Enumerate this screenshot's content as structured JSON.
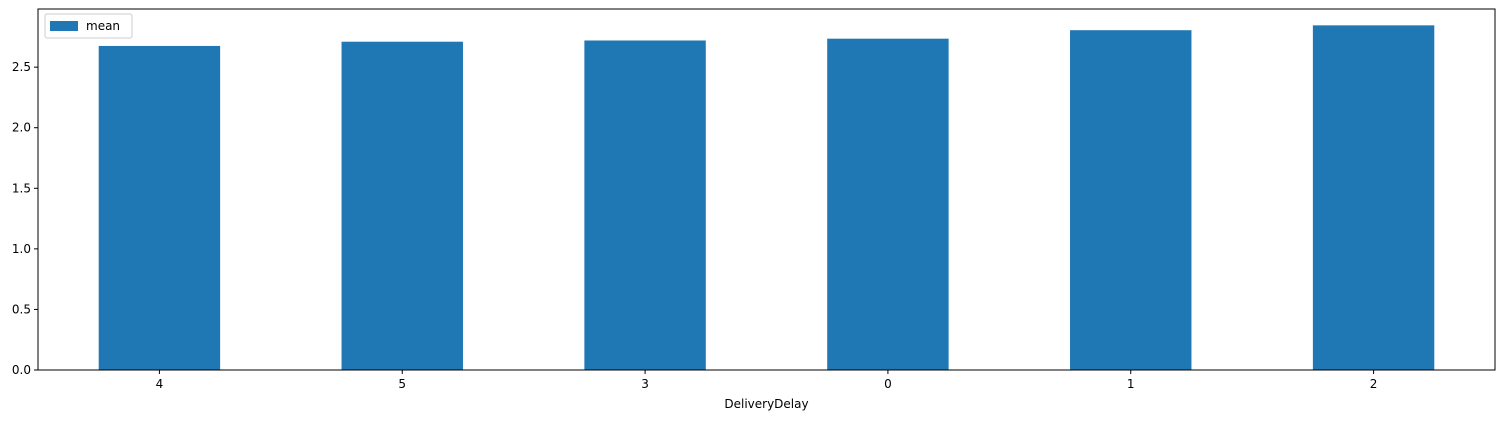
{
  "chart_data": {
    "type": "bar",
    "categories": [
      "4",
      "5",
      "3",
      "0",
      "1",
      "2"
    ],
    "series": [
      {
        "name": "mean",
        "values": [
          2.675,
          2.71,
          2.72,
          2.735,
          2.805,
          2.845
        ],
        "color": "#1f77b4"
      }
    ],
    "title": "",
    "xlabel": "DeliveryDelay",
    "ylabel": "",
    "ylim": [
      0,
      2.98
    ],
    "yticks": [
      "0.0",
      "0.5",
      "1.0",
      "1.5",
      "2.0",
      "2.5"
    ],
    "grid": false,
    "legend": {
      "placement": "top-left",
      "entries": [
        "mean"
      ]
    }
  }
}
